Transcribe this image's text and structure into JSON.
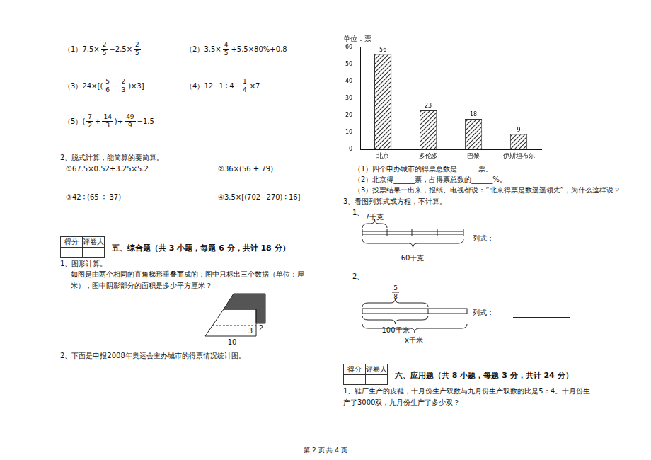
{
  "left": {
    "calc": [
      {
        "label": "（1）",
        "expr": [
          "7.5×",
          {
            "num": "2",
            "den": "5"
          },
          "−2.5×",
          {
            "num": "2",
            "den": "5"
          }
        ]
      },
      {
        "label": "（2）",
        "expr": [
          "3.5×",
          {
            "num": "4",
            "den": "5"
          },
          "+5.5×80%+0.8"
        ]
      },
      {
        "label": "（3）",
        "expr": [
          "24×[(",
          {
            "num": "5",
            "den": "6"
          },
          "−",
          {
            "num": "2",
            "den": "3"
          },
          ")×3]"
        ]
      },
      {
        "label": "（4）",
        "expr": [
          "12−1÷4−",
          {
            "num": "1",
            "den": "4"
          },
          "×7"
        ]
      },
      {
        "label": "（5）",
        "expr": [
          "(",
          {
            "num": "7",
            "den": "2"
          },
          "+",
          {
            "num": "14",
            "den": "3"
          },
          ")÷",
          {
            "num": "49",
            "den": "9"
          },
          "−1.5"
        ]
      }
    ],
    "q2": {
      "title": "2、脱式计算，能简算的要简算。",
      "items": [
        "①67.5×0.52+3.25×5.2",
        "②36×(56 + 79)",
        "③42÷(65 ÷ 37)",
        "④3.5×[(702−270)÷16]"
      ]
    },
    "score_box": [
      "得分",
      "评卷人"
    ],
    "section5": {
      "heading": "五、综合题（共 3 小题，每题 6 分，共计 18 分）",
      "q1_title": "1、图形计算。",
      "q1_text": "如图是由两个相同的直角梯形重叠而成的，图中只标出三个数据（单位：厘米），图中阴影部分的面积是多少平方厘米？",
      "figure_labels": {
        "bottom": "10",
        "inner": "3",
        "side": "2"
      },
      "q2_title": "2、下面是申报2008年奥运会主办城市的得票情况统计图。"
    }
  },
  "chart_data": {
    "type": "bar",
    "title": "单位：票",
    "categories": [
      "北京",
      "多伦多",
      "巴黎",
      "伊斯坦布尔"
    ],
    "values": [
      56,
      23,
      18,
      9
    ],
    "color": "#333333",
    "ylim": [
      0,
      60
    ],
    "yticks": [
      0,
      10,
      20,
      30,
      40,
      50,
      60
    ],
    "grid": false,
    "data_labels": true
  },
  "right": {
    "chart_questions": [
      "（1）四个申办城市的得票总数是______票。",
      "（2）北京得______票，占得票总数的______%。",
      "（3）投票结果一出来，报纸、电视都说：“北京得票是数遥遥领先”，为什么这样说？"
    ],
    "q3": {
      "title": "3、看图列算式或方程，不计算。",
      "items": [
        {
          "label": "1、",
          "top": "7千克",
          "bottom": "60千克",
          "answer": "列式："
        },
        {
          "label": "2、",
          "top": {
            "num": "5",
            "den": "8"
          },
          "middle": "100千米",
          "bottom": "x千米",
          "answer": "列式："
        }
      ]
    },
    "score_box": [
      "得分",
      "评卷人"
    ],
    "section6": {
      "heading": "六、应用题（共 8 小题，每题 3 分，共计 24 分）",
      "q1": "1、鞋厂生产的皮鞋，十月份生产双数与九月份生产双数的比是5：4。十月份生产了3000双，九月份生产了多少双？"
    }
  },
  "footer": "第 2 页 共 4 页"
}
